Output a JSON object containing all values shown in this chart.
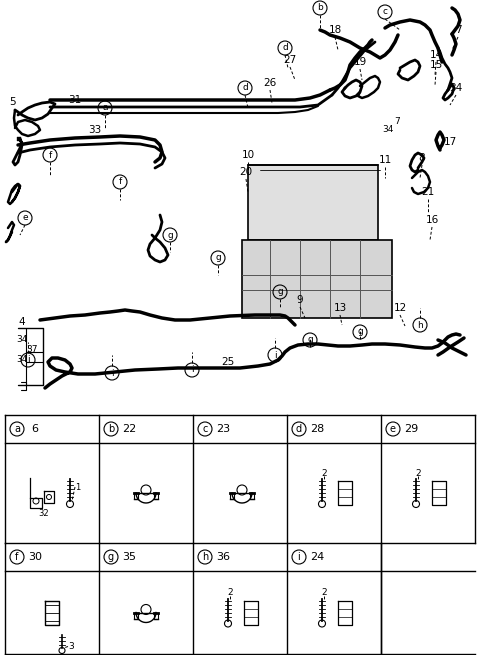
{
  "bg_color": "#ffffff",
  "fig_width": 4.8,
  "fig_height": 6.55,
  "dpi": 100,
  "table": {
    "row1_cells": [
      {
        "letter": "a",
        "number": "6",
        "col": 0
      },
      {
        "letter": "b",
        "number": "22",
        "col": 1
      },
      {
        "letter": "c",
        "number": "23",
        "col": 2
      },
      {
        "letter": "d",
        "number": "28",
        "col": 3
      },
      {
        "letter": "e",
        "number": "29",
        "col": 4
      }
    ],
    "row2_cells": [
      {
        "letter": "f",
        "number": "30",
        "col": 0
      },
      {
        "letter": "g",
        "number": "35",
        "col": 1
      },
      {
        "letter": "h",
        "number": "36",
        "col": 2
      },
      {
        "letter": "i",
        "number": "24",
        "col": 3
      }
    ]
  }
}
